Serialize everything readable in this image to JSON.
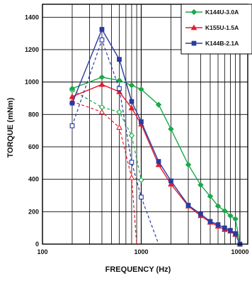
{
  "chart_data": {
    "type": "line",
    "xlabel": "FREQUENCY (Hz)",
    "ylabel": "TORQUE (mNm)",
    "x_scale": "log",
    "xlim": [
      100,
      12000
    ],
    "ylim": [
      0,
      1480
    ],
    "x_ticks": [
      100,
      1000,
      10000
    ],
    "x_tick_labels": [
      "100",
      "1000",
      "10000"
    ],
    "y_ticks": [
      0,
      200,
      400,
      600,
      800,
      1000,
      1200,
      1400
    ],
    "y_tick_labels": [
      "0",
      "200",
      "400",
      "600",
      "800",
      "1000",
      "1200",
      "1400"
    ],
    "grid": true,
    "legend_position": "top-right",
    "series": [
      {
        "name": "K144U-3.0A",
        "color": "#1aa84a",
        "marker": "diamond",
        "solid": {
          "x": [
            200,
            400,
            600,
            800,
            1000,
            1500,
            2000,
            3000,
            4000,
            5000,
            6000,
            7000,
            8000,
            9000,
            10000
          ],
          "y": [
            960,
            1030,
            1010,
            980,
            955,
            860,
            710,
            490,
            365,
            295,
            235,
            205,
            175,
            155,
            0
          ]
        },
        "dashed": {
          "x": [
            200,
            400,
            600,
            800,
            1000
          ],
          "y": [
            950,
            845,
            815,
            670,
            395
          ]
        }
      },
      {
        "name": "K155U-1.5A",
        "color": "#e8192c",
        "marker": "triangle",
        "solid": {
          "x": [
            200,
            400,
            600,
            800,
            1000,
            1500,
            2000,
            3000,
            4000,
            5000,
            6000,
            7000,
            8000,
            9000,
            10000
          ],
          "y": [
            910,
            985,
            940,
            840,
            740,
            490,
            370,
            235,
            175,
            135,
            110,
            90,
            80,
            60,
            0
          ]
        },
        "dashed": {
          "x": [
            200,
            400,
            600,
            800,
            900
          ],
          "y": [
            880,
            815,
            720,
            410,
            0
          ]
        }
      },
      {
        "name": "K144B-2.1A",
        "color": "#2a3aa0",
        "marker": "square",
        "solid": {
          "x": [
            200,
            400,
            600,
            800,
            1000,
            1500,
            2000,
            3000,
            4000,
            5000,
            6000,
            7000,
            8000,
            9000,
            10000
          ],
          "y": [
            870,
            1325,
            1140,
            880,
            755,
            510,
            390,
            240,
            185,
            140,
            120,
            100,
            85,
            65,
            0
          ]
        },
        "dashed": {
          "x": [
            200,
            400,
            600,
            800,
            1000,
            1500
          ],
          "y": [
            730,
            1260,
            960,
            505,
            290,
            0
          ]
        }
      }
    ]
  }
}
